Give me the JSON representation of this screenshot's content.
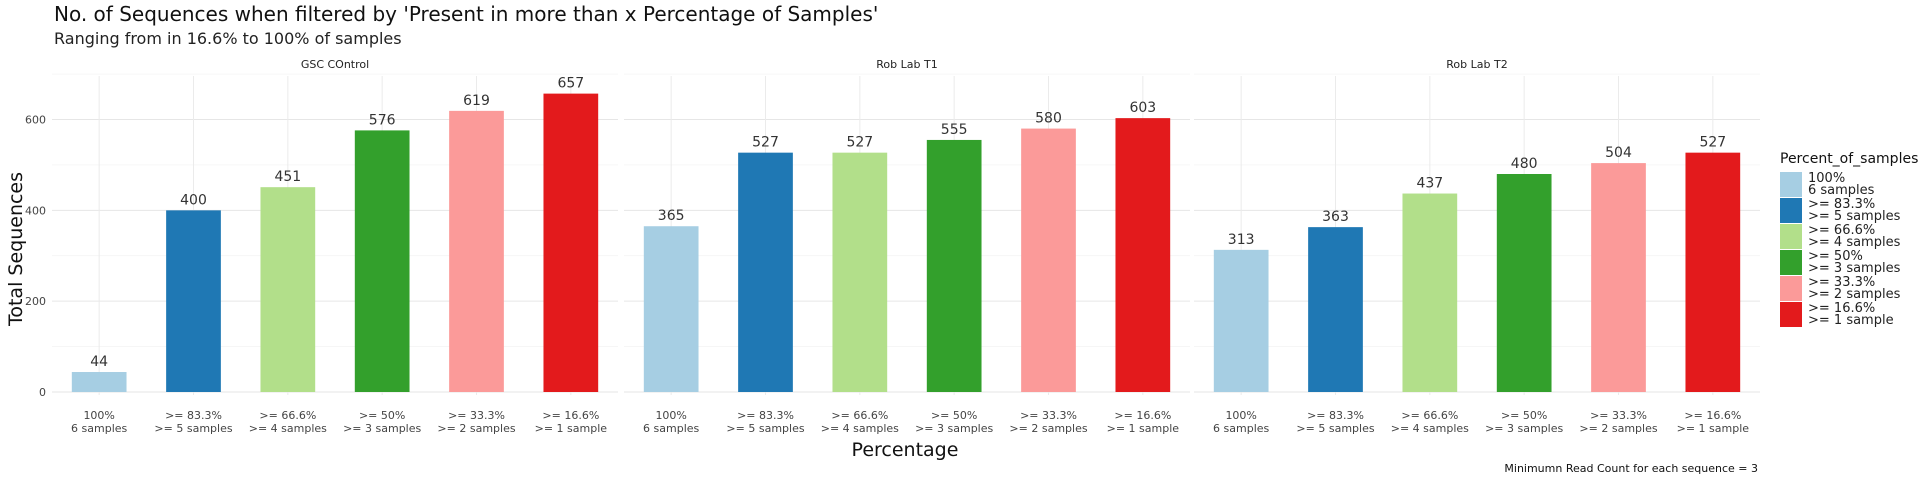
{
  "chart_data": {
    "type": "bar",
    "title": "No. of Sequences when filtered by 'Present in more than x Percentage of Samples'",
    "subtitle": "Ranging from in 16.6% to 100% of samples",
    "xlabel": "Percentage",
    "ylabel": "Total Sequences",
    "caption": "Minimumn Read Count for each sequence = 3",
    "ylim": [
      0,
      720
    ],
    "yticks": [
      0,
      200,
      400,
      600
    ],
    "grid": true,
    "legend_position": "right",
    "legend_title": "Percent_of_samples",
    "categories": [
      [
        "100%",
        "6 samples"
      ],
      [
        ">= 83.3%",
        ">= 5 samples"
      ],
      [
        ">= 66.6%",
        ">= 4 samples"
      ],
      [
        ">= 50%",
        ">= 3 samples"
      ],
      [
        ">= 33.3%",
        ">= 2 samples"
      ],
      [
        ">= 16.6%",
        ">= 1 sample"
      ]
    ],
    "colors": [
      "#A6CEE3",
      "#1F78B4",
      "#B2DF8A",
      "#33A02C",
      "#FB9A99",
      "#E31A1C"
    ],
    "panels": [
      {
        "name": "GSC COntrol",
        "values": [
          44,
          400,
          451,
          576,
          619,
          657
        ]
      },
      {
        "name": "Rob Lab T1",
        "values": [
          365,
          527,
          527,
          555,
          580,
          603
        ]
      },
      {
        "name": "Rob Lab T2",
        "values": [
          313,
          363,
          437,
          480,
          504,
          527
        ]
      }
    ]
  }
}
